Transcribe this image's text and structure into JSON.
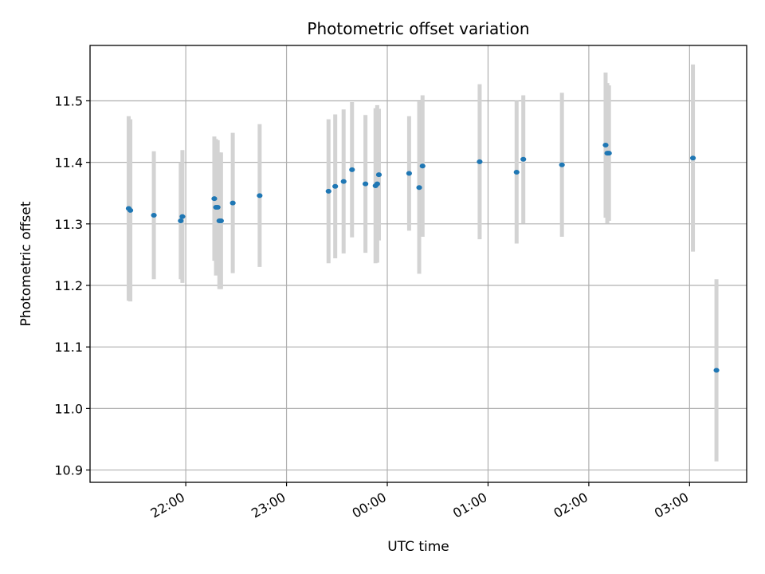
{
  "chart_data": {
    "type": "scatter",
    "title": "Photometric offset variation",
    "xlabel": "UTC time",
    "ylabel": "Photometric offset",
    "grid": true,
    "colors": {
      "point": "#1f77b4",
      "errorbar": "#d3d3d3",
      "grid": "#b0b0b0",
      "axis": "#000000"
    },
    "xlim": [
      "21:03",
      "03:34"
    ],
    "ylim": [
      10.88,
      11.59
    ],
    "x_ticks": [
      "22:00",
      "23:00",
      "00:00",
      "01:00",
      "02:00",
      "03:00"
    ],
    "y_ticks": [
      "10.9",
      "11.0",
      "11.1",
      "11.2",
      "11.3",
      "11.4",
      "11.5"
    ],
    "series": [
      {
        "points": [
          {
            "x": "21:26",
            "y": 11.325,
            "yerr": 0.15
          },
          {
            "x": "21:27",
            "y": 11.322,
            "yerr": 0.148
          },
          {
            "x": "21:41",
            "y": 11.314,
            "yerr": 0.104
          },
          {
            "x": "21:57",
            "y": 11.305,
            "yerr": 0.095
          },
          {
            "x": "21:58",
            "y": 11.312,
            "yerr": 0.108
          },
          {
            "x": "22:17",
            "y": 11.341,
            "yerr": 0.101
          },
          {
            "x": "22:18",
            "y": 11.327,
            "yerr": 0.111
          },
          {
            "x": "22:19",
            "y": 11.327,
            "yerr": 0.109
          },
          {
            "x": "22:20",
            "y": 11.305,
            "yerr": 0.111
          },
          {
            "x": "22:21",
            "y": 11.305,
            "yerr": 0.111
          },
          {
            "x": "22:28",
            "y": 11.334,
            "yerr": 0.114
          },
          {
            "x": "22:44",
            "y": 11.346,
            "yerr": 0.116
          },
          {
            "x": "23:25",
            "y": 11.353,
            "yerr": 0.117
          },
          {
            "x": "23:29",
            "y": 11.361,
            "yerr": 0.117
          },
          {
            "x": "23:34",
            "y": 11.369,
            "yerr": 0.117
          },
          {
            "x": "23:39",
            "y": 11.388,
            "yerr": 0.11
          },
          {
            "x": "23:47",
            "y": 11.365,
            "yerr": 0.112
          },
          {
            "x": "23:53",
            "y": 11.362,
            "yerr": 0.126
          },
          {
            "x": "23:54",
            "y": 11.365,
            "yerr": 0.128
          },
          {
            "x": "23:55",
            "y": 11.38,
            "yerr": 0.107
          },
          {
            "x": "00:13",
            "y": 11.382,
            "yerr": 0.093
          },
          {
            "x": "00:19",
            "y": 11.359,
            "yerr": 0.14
          },
          {
            "x": "00:21",
            "y": 11.394,
            "yerr": 0.115
          },
          {
            "x": "00:55",
            "y": 11.401,
            "yerr": 0.126
          },
          {
            "x": "01:17",
            "y": 11.384,
            "yerr": 0.116
          },
          {
            "x": "01:21",
            "y": 11.405,
            "yerr": 0.104
          },
          {
            "x": "01:44",
            "y": 11.396,
            "yerr": 0.117
          },
          {
            "x": "02:10",
            "y": 11.428,
            "yerr": 0.118
          },
          {
            "x": "02:11",
            "y": 11.415,
            "yerr": 0.114
          },
          {
            "x": "02:12",
            "y": 11.415,
            "yerr": 0.11
          },
          {
            "x": "03:02",
            "y": 11.407,
            "yerr": 0.152
          },
          {
            "x": "03:16",
            "y": 11.062,
            "yerr": 0.148
          }
        ]
      }
    ]
  }
}
